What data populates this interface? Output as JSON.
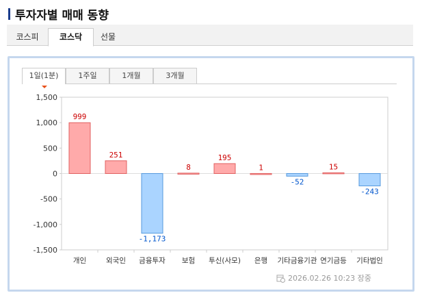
{
  "title": "투자자별 매매 동향",
  "market_tabs": [
    {
      "label": "코스피"
    },
    {
      "label": "코스닥",
      "active": true
    },
    {
      "label": "선물"
    }
  ],
  "period_tabs": [
    {
      "label": "1일(1분)",
      "active": true
    },
    {
      "label": "1주일"
    },
    {
      "label": "1개월"
    },
    {
      "label": "3개월"
    }
  ],
  "timestamp": "2026.02.26 10:23 장중",
  "timestamp_icon": "calendar-clock-icon",
  "colors": {
    "positive_fill": "#ffaaaa",
    "positive_stroke": "#e06060",
    "negative_fill": "#aad4ff",
    "negative_stroke": "#5599dd",
    "positive_label": "#cc0000",
    "negative_label": "#0055cc"
  },
  "chart_data": {
    "type": "bar",
    "categories": [
      "개인",
      "외국인",
      "금융투자",
      "보험",
      "투신(사모)",
      "은행",
      "기타금융기관",
      "연기금등",
      "기타법인"
    ],
    "values": [
      999,
      251,
      -1173,
      8,
      195,
      1,
      -52,
      15,
      -243
    ],
    "value_labels": [
      "999",
      "251",
      "-1,173",
      "8",
      "195",
      "1",
      "-52",
      "15",
      "-243"
    ],
    "ylim": [
      -1500,
      1500
    ],
    "yticks": [
      1500,
      1000,
      500,
      0,
      -500,
      -1000,
      -1500
    ],
    "ytick_labels": [
      "1,500",
      "1,000",
      "500",
      "0",
      "-500",
      "-1,000",
      "-1,500"
    ],
    "grid": false
  }
}
